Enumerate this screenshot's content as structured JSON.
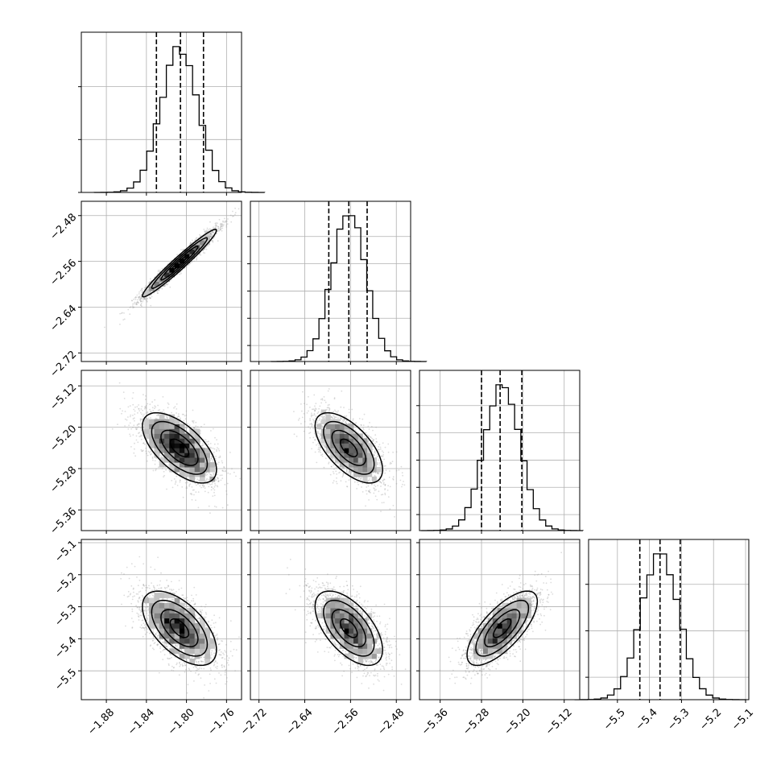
{
  "chart_data": {
    "type": "corner",
    "grid": true,
    "hist_dashed_lines": "16th / 50th / 84th percentiles",
    "params": [
      {
        "mean": -1.807,
        "std": 0.0185,
        "lim": [
          -1.905,
          -1.745
        ],
        "ticks": [
          -1.88,
          -1.84,
          -1.8,
          -1.76
        ],
        "ticklabels": [
          "−1.88",
          "−1.84",
          "−1.80",
          "−1.76"
        ],
        "quantiles": [
          -1.83,
          -1.806,
          -1.783
        ]
      },
      {
        "mean": -2.563,
        "std": 0.0295,
        "lim": [
          -2.735,
          -2.455
        ],
        "ticks": [
          -2.72,
          -2.64,
          -2.56,
          -2.48
        ],
        "ticklabels": [
          "−2.72",
          "−2.64",
          "−2.56",
          "−2.48"
        ],
        "quantiles": [
          -2.598,
          -2.563,
          -2.531
        ]
      },
      {
        "mean": -5.24,
        "std": 0.034,
        "lim": [
          -5.4,
          -5.09
        ],
        "ticks": [
          -5.36,
          -5.28,
          -5.2,
          -5.12
        ],
        "ticklabels": [
          "−5.36",
          "−5.28",
          "−5.20",
          "−5.12"
        ],
        "quantiles": [
          -5.28,
          -5.244,
          -5.202
        ]
      },
      {
        "mean": -5.367,
        "std": 0.058,
        "lim": [
          -5.59,
          -5.09
        ],
        "ticks": [
          -5.5,
          -5.4,
          -5.3,
          -5.2,
          -5.1
        ],
        "ticklabels": [
          "−5.5",
          "−5.4",
          "−5.3",
          "−5.2",
          "−5.1"
        ],
        "quantiles": [
          -5.43,
          -5.367,
          -5.304
        ]
      }
    ],
    "correlations": {
      "1-0": 0.97,
      "2-0": -0.62,
      "2-1": -0.62,
      "3-0": -0.58,
      "3-1": -0.58,
      "3-2": 0.72
    },
    "scatter_color": "#9a9a9a",
    "contour_color": "#000000",
    "hist_color": "#000000",
    "grid_color": "#b0b0b0"
  }
}
